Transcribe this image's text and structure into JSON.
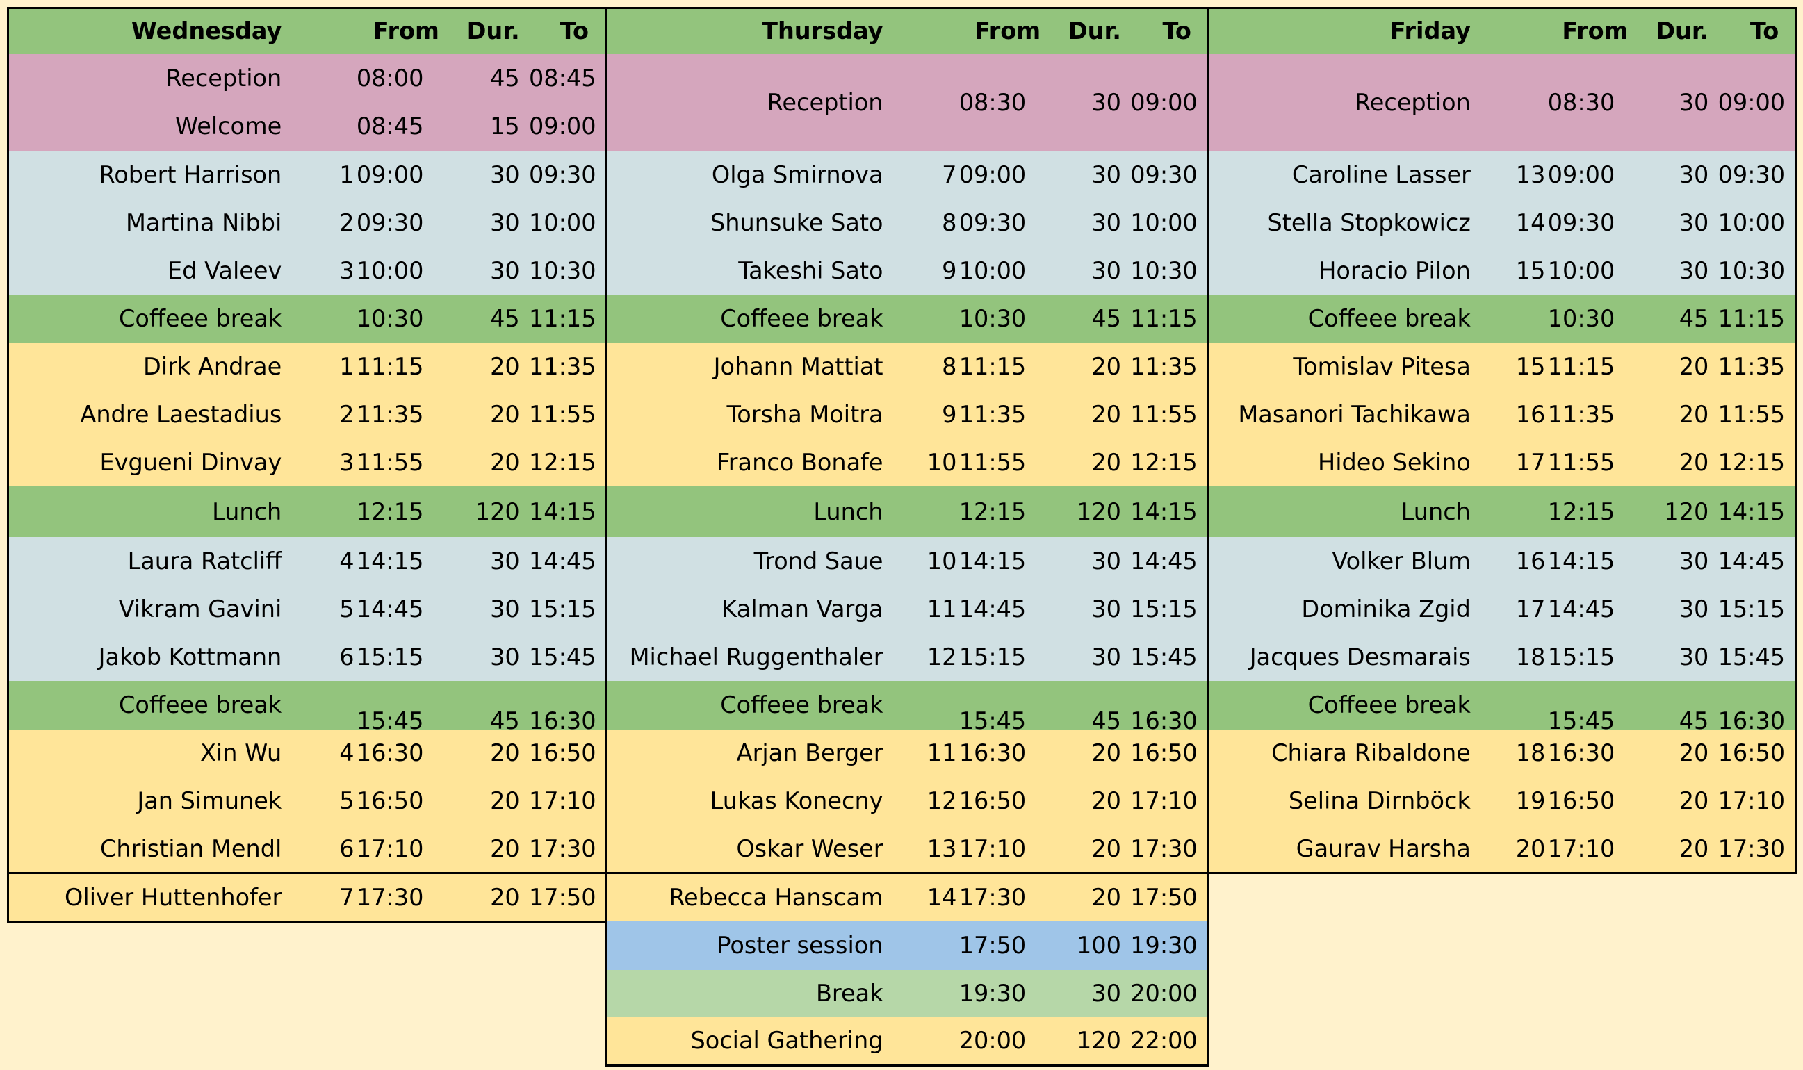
{
  "colors": {
    "page_bg": "#fff2cc",
    "header": "#93c47d",
    "opening": "#d5a6bd",
    "talk30": "#d0e0e3",
    "talk20": "#ffe599",
    "break": "#93c47d",
    "poster": "#9fc5e8",
    "evening_break": "#b6d7a8",
    "social": "#ffe599"
  },
  "days": [
    {
      "name": "Wednesday",
      "header": {
        "from": "From",
        "dur": "Dur.",
        "to": "To"
      },
      "rows": [
        {
          "type": "opening",
          "name": "Reception",
          "num": "",
          "from": "08:00",
          "dur": "45",
          "to": "08:45"
        },
        {
          "type": "opening",
          "name": "Welcome",
          "num": "",
          "from": "08:45",
          "dur": "15",
          "to": "09:00"
        },
        {
          "type": "talk30",
          "name": "Robert Harrison",
          "num": "1",
          "from": "09:00",
          "dur": "30",
          "to": "09:30"
        },
        {
          "type": "talk30",
          "name": "Martina Nibbi",
          "num": "2",
          "from": "09:30",
          "dur": "30",
          "to": "10:00"
        },
        {
          "type": "talk30",
          "name": "Ed Valeev",
          "num": "3",
          "from": "10:00",
          "dur": "30",
          "to": "10:30"
        },
        {
          "type": "break",
          "name": "Coffeee break",
          "num": "",
          "from": "10:30",
          "dur": "45",
          "to": "11:15"
        },
        {
          "type": "talk20",
          "name": "Dirk Andrae",
          "num": "1",
          "from": "11:15",
          "dur": "20",
          "to": "11:35"
        },
        {
          "type": "talk20",
          "name": "Andre Laestadius",
          "num": "2",
          "from": "11:35",
          "dur": "20",
          "to": "11:55"
        },
        {
          "type": "talk20",
          "name": "Evgueni Dinvay",
          "num": "3",
          "from": "11:55",
          "dur": "20",
          "to": "12:15"
        },
        {
          "type": "break",
          "name": "Lunch",
          "num": "",
          "from": "12:15",
          "dur": "120",
          "to": "14:15"
        },
        {
          "type": "talk30",
          "name": "Laura Ratcliff",
          "num": "4",
          "from": "14:15",
          "dur": "30",
          "to": "14:45"
        },
        {
          "type": "talk30",
          "name": "Vikram Gavini",
          "num": "5",
          "from": "14:45",
          "dur": "30",
          "to": "15:15"
        },
        {
          "type": "talk30",
          "name": "Jakob Kottmann",
          "num": "6",
          "from": "15:15",
          "dur": "30",
          "to": "15:45"
        },
        {
          "type": "break",
          "name": "Coffeee break",
          "num": "",
          "from": "15:45",
          "dur": "45",
          "to": "16:30"
        },
        {
          "type": "talk20",
          "name": "Xin Wu",
          "num": "4",
          "from": "16:30",
          "dur": "20",
          "to": "16:50"
        },
        {
          "type": "talk20",
          "name": "Jan Simunek",
          "num": "5",
          "from": "16:50",
          "dur": "20",
          "to": "17:10"
        },
        {
          "type": "talk20",
          "name": "Christian Mendl",
          "num": "6",
          "from": "17:10",
          "dur": "20",
          "to": "17:30"
        },
        {
          "type": "talk20",
          "name": "Oliver Huttenhofer",
          "num": "7",
          "from": "17:30",
          "dur": "20",
          "to": "17:50"
        }
      ]
    },
    {
      "name": "Thursday",
      "header": {
        "from": "From",
        "dur": "Dur.",
        "to": "To"
      },
      "rows": [
        {
          "type": "opening",
          "name": "Reception",
          "num": "",
          "from": "08:30",
          "dur": "30",
          "to": "09:00"
        },
        {
          "type": "talk30",
          "name": "Olga Smirnova",
          "num": "7",
          "from": "09:00",
          "dur": "30",
          "to": "09:30"
        },
        {
          "type": "talk30",
          "name": "Shunsuke Sato",
          "num": "8",
          "from": "09:30",
          "dur": "30",
          "to": "10:00"
        },
        {
          "type": "talk30",
          "name": "Takeshi Sato",
          "num": "9",
          "from": "10:00",
          "dur": "30",
          "to": "10:30"
        },
        {
          "type": "break",
          "name": "Coffeee break",
          "num": "",
          "from": "10:30",
          "dur": "45",
          "to": "11:15"
        },
        {
          "type": "talk20",
          "name": "Johann Mattiat",
          "num": "8",
          "from": "11:15",
          "dur": "20",
          "to": "11:35"
        },
        {
          "type": "talk20",
          "name": "Torsha Moitra",
          "num": "9",
          "from": "11:35",
          "dur": "20",
          "to": "11:55"
        },
        {
          "type": "talk20",
          "name": "Franco Bonafe",
          "num": "10",
          "from": "11:55",
          "dur": "20",
          "to": "12:15"
        },
        {
          "type": "break",
          "name": "Lunch",
          "num": "",
          "from": "12:15",
          "dur": "120",
          "to": "14:15"
        },
        {
          "type": "talk30",
          "name": "Trond Saue",
          "num": "10",
          "from": "14:15",
          "dur": "30",
          "to": "14:45"
        },
        {
          "type": "talk30",
          "name": "Kalman Varga",
          "num": "11",
          "from": "14:45",
          "dur": "30",
          "to": "15:15"
        },
        {
          "type": "talk30",
          "name": "Michael Ruggenthaler",
          "num": "12",
          "from": "15:15",
          "dur": "30",
          "to": "15:45"
        },
        {
          "type": "break",
          "name": "Coffeee break",
          "num": "",
          "from": "15:45",
          "dur": "45",
          "to": "16:30"
        },
        {
          "type": "talk20",
          "name": "Arjan Berger",
          "num": "11",
          "from": "16:30",
          "dur": "20",
          "to": "16:50"
        },
        {
          "type": "talk20",
          "name": "Lukas Konecny",
          "num": "12",
          "from": "16:50",
          "dur": "20",
          "to": "17:10"
        },
        {
          "type": "talk20",
          "name": "Oskar Weser",
          "num": "13",
          "from": "17:10",
          "dur": "20",
          "to": "17:30"
        },
        {
          "type": "talk20",
          "name": "Rebecca Hanscam",
          "num": "14",
          "from": "17:30",
          "dur": "20",
          "to": "17:50"
        },
        {
          "type": "poster",
          "name": "Poster session",
          "num": "",
          "from": "17:50",
          "dur": "100",
          "to": "19:30"
        },
        {
          "type": "evening_break",
          "name": "Break",
          "num": "",
          "from": "19:30",
          "dur": "30",
          "to": "20:00"
        },
        {
          "type": "social",
          "name": "Social Gathering",
          "num": "",
          "from": "20:00",
          "dur": "120",
          "to": "22:00"
        }
      ]
    },
    {
      "name": "Friday",
      "header": {
        "from": "From",
        "dur": "Dur.",
        "to": "To"
      },
      "rows": [
        {
          "type": "opening",
          "name": "Reception",
          "num": "",
          "from": "08:30",
          "dur": "30",
          "to": "09:00"
        },
        {
          "type": "talk30",
          "name": "Caroline Lasser",
          "num": "13",
          "from": "09:00",
          "dur": "30",
          "to": "09:30"
        },
        {
          "type": "talk30",
          "name": "Stella Stopkowicz",
          "num": "14",
          "from": "09:30",
          "dur": "30",
          "to": "10:00"
        },
        {
          "type": "talk30",
          "name": "Horacio Pilon",
          "num": "15",
          "from": "10:00",
          "dur": "30",
          "to": "10:30"
        },
        {
          "type": "break",
          "name": "Coffeee break",
          "num": "",
          "from": "10:30",
          "dur": "45",
          "to": "11:15"
        },
        {
          "type": "talk20",
          "name": "Tomislav Pitesa",
          "num": "15",
          "from": "11:15",
          "dur": "20",
          "to": "11:35"
        },
        {
          "type": "talk20",
          "name": "Masanori Tachikawa",
          "num": "16",
          "from": "11:35",
          "dur": "20",
          "to": "11:55"
        },
        {
          "type": "talk20",
          "name": "Hideo Sekino",
          "num": "17",
          "from": "11:55",
          "dur": "20",
          "to": "12:15"
        },
        {
          "type": "break",
          "name": "Lunch",
          "num": "",
          "from": "12:15",
          "dur": "120",
          "to": "14:15"
        },
        {
          "type": "talk30",
          "name": "Volker Blum",
          "num": "16",
          "from": "14:15",
          "dur": "30",
          "to": "14:45"
        },
        {
          "type": "talk30",
          "name": "Dominika Zgid",
          "num": "17",
          "from": "14:45",
          "dur": "30",
          "to": "15:15"
        },
        {
          "type": "talk30",
          "name": "Jacques Desmarais",
          "num": "18",
          "from": "15:15",
          "dur": "30",
          "to": "15:45"
        },
        {
          "type": "break",
          "name": "Coffeee break",
          "num": "",
          "from": "15:45",
          "dur": "45",
          "to": "16:30"
        },
        {
          "type": "talk20",
          "name": "Chiara Ribaldone",
          "num": "18",
          "from": "16:30",
          "dur": "20",
          "to": "16:50"
        },
        {
          "type": "talk20",
          "name": "Selina Dirnböck",
          "num": "19",
          "from": "16:50",
          "dur": "20",
          "to": "17:10"
        },
        {
          "type": "talk20",
          "name": "Gaurav Harsha",
          "num": "20",
          "from": "17:10",
          "dur": "20",
          "to": "17:30"
        }
      ]
    }
  ]
}
